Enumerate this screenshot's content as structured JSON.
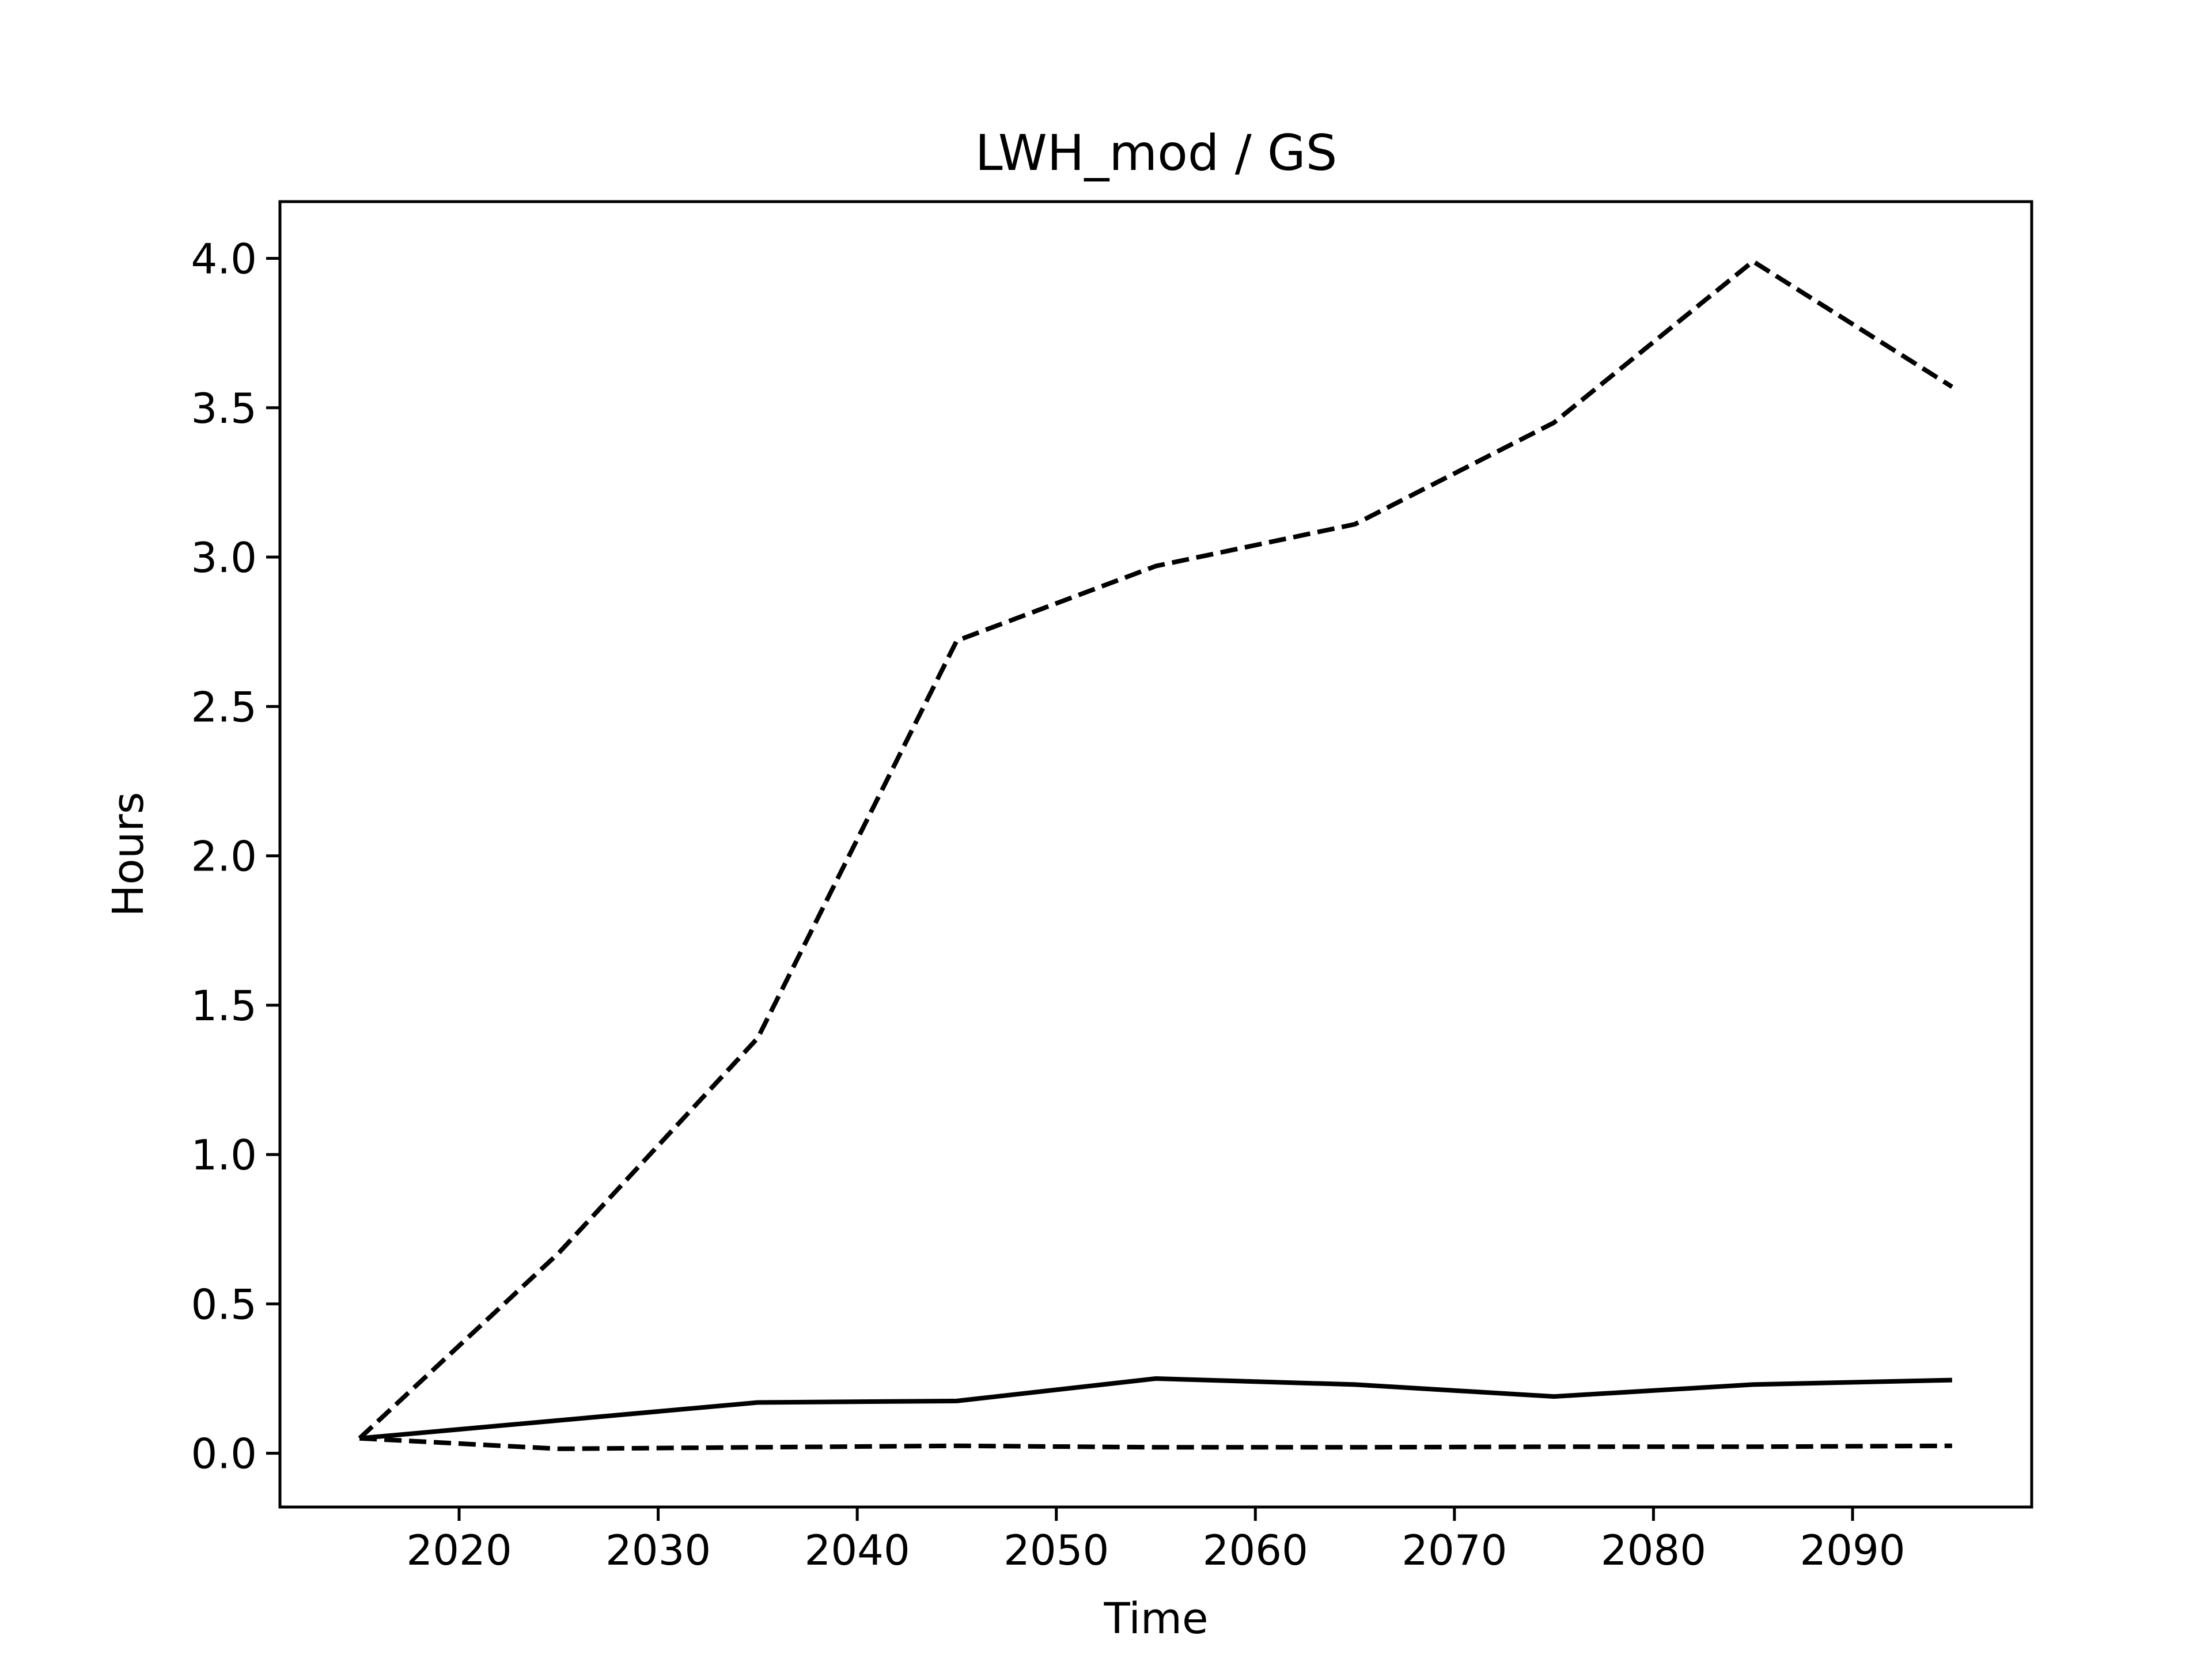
{
  "chart_data": {
    "type": "line",
    "title": "LWH_mod / GS",
    "xlabel": "Time",
    "ylabel": "Hours",
    "x": [
      2015,
      2025,
      2035,
      2045,
      2055,
      2065,
      2075,
      2085,
      2095
    ],
    "series": [
      {
        "style": "solid",
        "values": [
          0.05,
          0.11,
          0.17,
          0.175,
          0.25,
          0.23,
          0.19,
          0.23,
          0.245
        ]
      },
      {
        "style": "dashed",
        "values": [
          0.05,
          0.67,
          1.39,
          2.72,
          2.97,
          3.11,
          3.45,
          3.99,
          3.57
        ]
      },
      {
        "style": "dashed",
        "values": [
          0.05,
          0.015,
          0.02,
          0.025,
          0.02,
          0.02,
          0.022,
          0.022,
          0.025
        ]
      }
    ],
    "xlim": [
      2011.0,
      2099.0
    ],
    "ylim": [
      -0.18,
      4.19
    ],
    "xticks": [
      2020,
      2030,
      2040,
      2050,
      2060,
      2070,
      2080,
      2090
    ],
    "yticks": [
      0.0,
      0.5,
      1.0,
      1.5,
      2.0,
      2.5,
      3.0,
      3.5,
      4.0
    ],
    "ytick_labels": [
      "0.0",
      "0.5",
      "1.0",
      "1.5",
      "2.0",
      "2.5",
      "3.0",
      "3.5",
      "4.0"
    ],
    "line_color": "#000000",
    "grid": false,
    "legend": false
  }
}
